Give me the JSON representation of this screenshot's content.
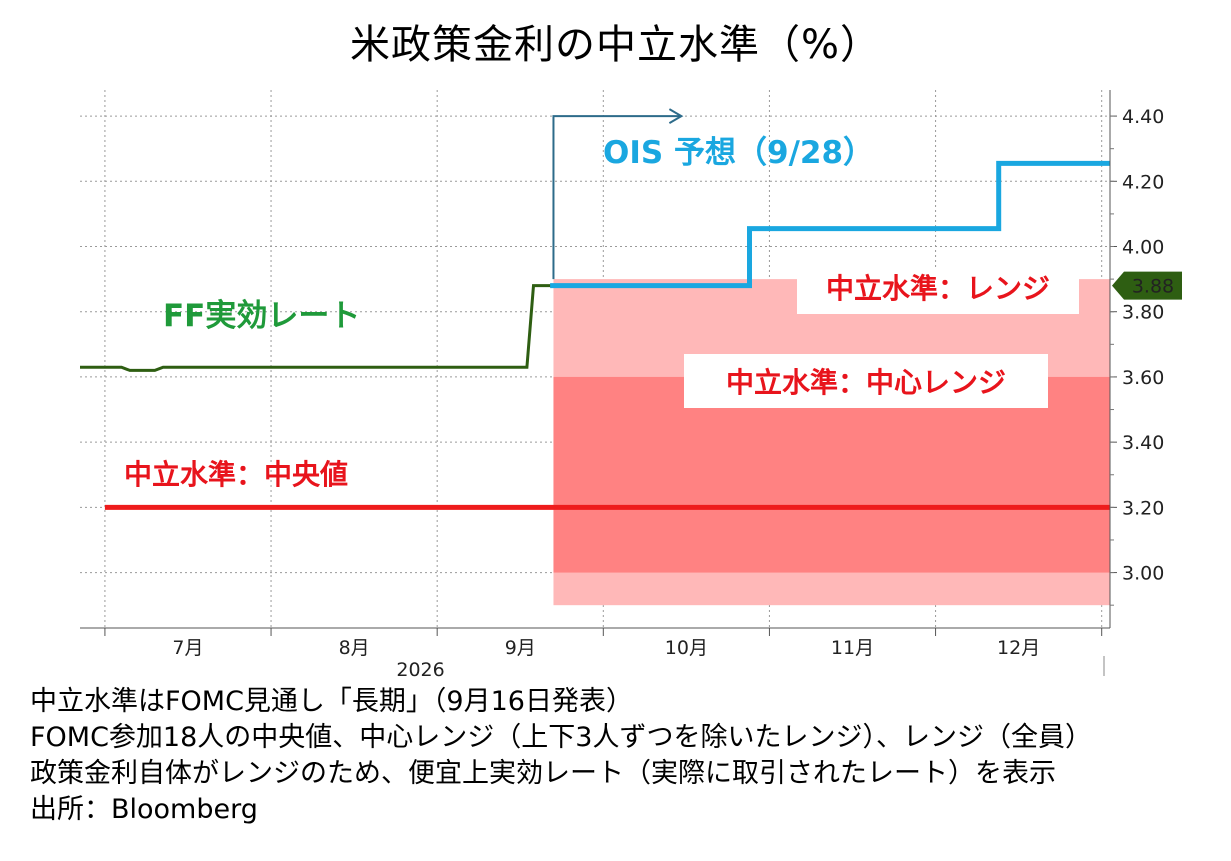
{
  "chart_data": {
    "type": "line",
    "title": "米政策金利の中立水準（%）",
    "x_unit": "month",
    "x_range": [
      6.35,
      12.55
    ],
    "ylim": [
      2.83,
      4.48
    ],
    "y_ticks": [
      "4.40",
      "4.20",
      "4.00",
      "3.80",
      "3.60",
      "3.40",
      "3.20",
      "3.00"
    ],
    "y_tick_values": [
      4.4,
      4.2,
      4.0,
      3.8,
      3.6,
      3.4,
      3.2,
      3.0
    ],
    "x_ticks": [
      {
        "label": "7月",
        "x": 7.0
      },
      {
        "label": "8月",
        "x": 8.0
      },
      {
        "label": "9月",
        "x": 9.0
      },
      {
        "label": "10月",
        "x": 10.0
      },
      {
        "label": "11月",
        "x": 11.0
      },
      {
        "label": "12月",
        "x": 12.0
      }
    ],
    "x_year_label": "2026",
    "grid": true,
    "last_value_badge": "3.88",
    "last_value_badge_y": 3.88,
    "series": [
      {
        "name": "FF実効レート",
        "color": "#2e5e12",
        "points": [
          [
            6.35,
            3.63
          ],
          [
            6.6,
            3.63
          ],
          [
            6.65,
            3.62
          ],
          [
            6.8,
            3.62
          ],
          [
            6.85,
            3.63
          ],
          [
            9.04,
            3.63
          ],
          [
            9.08,
            3.88
          ],
          [
            9.2,
            3.88
          ]
        ]
      },
      {
        "name": "OIS 予想（9/28）",
        "color": "#1aa7e0",
        "step": true,
        "points": [
          [
            9.18,
            3.88
          ],
          [
            9.2,
            3.88
          ],
          [
            10.38,
            3.88
          ],
          [
            10.38,
            4.055
          ],
          [
            11.88,
            4.055
          ],
          [
            11.88,
            4.255
          ],
          [
            12.55,
            4.255
          ]
        ]
      },
      {
        "name": "中立水準：中央値",
        "color": "#ee1c1c",
        "points": [
          [
            6.5,
            3.2
          ],
          [
            12.55,
            3.2
          ]
        ]
      }
    ],
    "bands": [
      {
        "name": "中立水準：レンジ",
        "x0": 9.2,
        "x1": 12.55,
        "y0": 2.9,
        "y1": 3.9,
        "color": "#ffb8b8"
      },
      {
        "name": "中立水準：中心レンジ",
        "x0": 9.2,
        "x1": 12.55,
        "y0": 3.0,
        "y1": 3.6,
        "color": "#ff8282"
      }
    ],
    "arrow": {
      "x0": 9.2,
      "y0": 3.9,
      "y_top": 4.4,
      "x1": 9.97
    }
  },
  "labels": {
    "ff_rate": "FF実効レート",
    "ois": "OIS 予想（9/28）",
    "range": "中立水準：レンジ",
    "center_range": "中立水準：中心レンジ",
    "median": "中立水準：中央値"
  },
  "notes": [
    "中立水準はFOMC見通し「長期」（9月16日発表）",
    "FOMC参加18人の中央値、中心レンジ（上下3人ずつを除いたレンジ）、レンジ（全員）",
    "政策金利自体がレンジのため、便宜上実効レート（実際に取引されたレート）を表示",
    "出所：Bloomberg"
  ]
}
